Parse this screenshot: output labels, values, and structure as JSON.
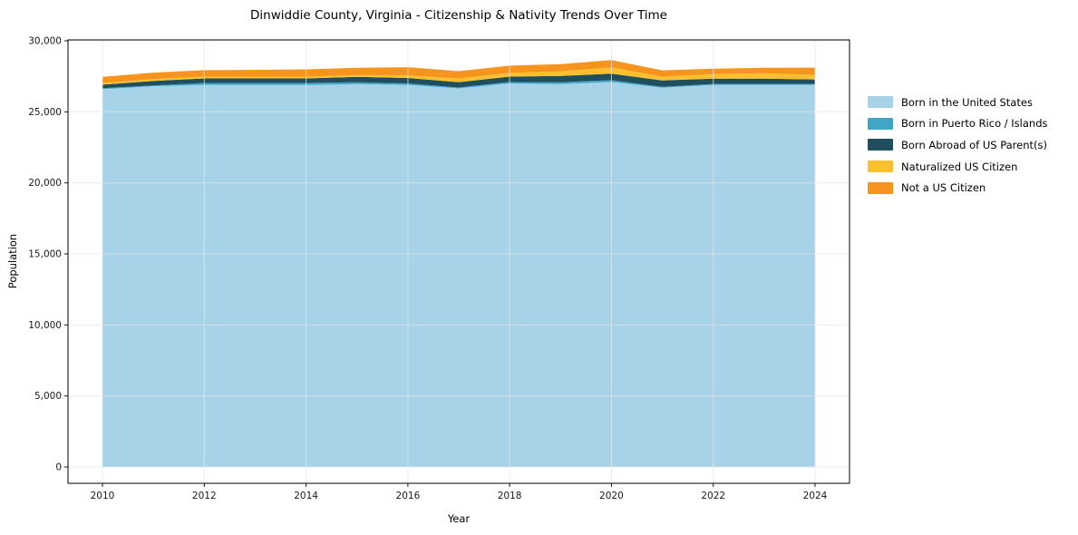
{
  "chart_data": {
    "type": "area",
    "stacked": true,
    "title": "Dinwiddie County, Virginia - Citizenship & Nativity Trends Over Time",
    "xlabel": "Year",
    "ylabel": "Population",
    "x": [
      2010,
      2011,
      2012,
      2013,
      2014,
      2015,
      2016,
      2017,
      2018,
      2019,
      2020,
      2021,
      2022,
      2023,
      2024
    ],
    "series": [
      {
        "name": "Born in the United States",
        "color": "#a7d3e8",
        "values": [
          26600,
          26800,
          26900,
          26900,
          26900,
          26950,
          26900,
          26650,
          27000,
          26950,
          27100,
          26700,
          26900,
          26900,
          26900
        ]
      },
      {
        "name": "Born in Puerto Rico / Islands",
        "color": "#41a6c6",
        "values": [
          60,
          60,
          130,
          130,
          130,
          130,
          100,
          60,
          100,
          130,
          130,
          60,
          60,
          60,
          60
        ]
      },
      {
        "name": "Born Abroad of US Parent(s)",
        "color": "#1f4e5f",
        "values": [
          250,
          320,
          320,
          320,
          320,
          380,
          380,
          380,
          380,
          450,
          450,
          450,
          380,
          380,
          320
        ]
      },
      {
        "name": "Naturalized US Citizen",
        "color": "#fcc02e",
        "values": [
          130,
          130,
          130,
          130,
          130,
          130,
          190,
          260,
          260,
          320,
          450,
          260,
          320,
          380,
          320
        ]
      },
      {
        "name": "Not a US Citizen",
        "color": "#f7941e",
        "values": [
          420,
          450,
          450,
          480,
          510,
          510,
          570,
          510,
          510,
          510,
          510,
          450,
          380,
          380,
          510
        ]
      }
    ],
    "xlim": [
      2010,
      2024
    ],
    "ylim": [
      0,
      30000
    ],
    "xtick_values": [
      2010,
      2012,
      2014,
      2016,
      2018,
      2020,
      2022,
      2024
    ],
    "xtick_labels": [
      "2010",
      "2012",
      "2014",
      "2016",
      "2018",
      "2020",
      "2022",
      "2024"
    ],
    "ytick_values": [
      0,
      5000,
      10000,
      15000,
      20000,
      25000,
      30000
    ],
    "ytick_labels": [
      "0",
      "5,000",
      "10,000",
      "15,000",
      "20,000",
      "25,000",
      "30,000"
    ],
    "grid": true,
    "legend_position": "right"
  }
}
